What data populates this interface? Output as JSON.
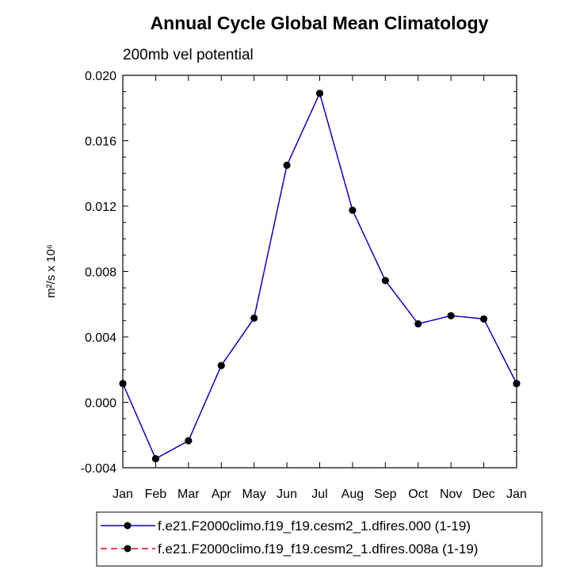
{
  "chart_data": {
    "type": "line",
    "title": "Annual Cycle Global Mean Climatology",
    "subtitle": "200mb vel potential",
    "ylabel": "m²/s x 10⁶",
    "ylim": [
      -0.004,
      0.02
    ],
    "yticks": [
      "0.020",
      "0.016",
      "0.012",
      "0.008",
      "0.004",
      "0.000",
      "-0.004"
    ],
    "categories": [
      "Jan",
      "Feb",
      "Mar",
      "Apr",
      "May",
      "Jun",
      "Jul",
      "Aug",
      "Sep",
      "Oct",
      "Nov",
      "Dec",
      "Jan"
    ],
    "series": [
      {
        "name": "f.e21.F2000climo.f19_f19.cesm2_1.dfires.000 (1-19)",
        "color": "#0000cc",
        "dash": "solid",
        "values": [
          0.00115,
          -0.00345,
          -0.00235,
          0.00225,
          0.00515,
          0.0145,
          0.0189,
          0.01175,
          0.00745,
          0.0048,
          0.0053,
          0.0051,
          0.00115
        ]
      },
      {
        "name": "f.e21.F2000climo.f19_f19.cesm2_1.dfires.008a (1-19)",
        "color": "#ff0000",
        "dash": "dashed",
        "values": [
          0.00115,
          -0.00345,
          -0.00235,
          0.00225,
          0.00515,
          0.0145,
          0.0189,
          0.01175,
          0.00745,
          0.0048,
          0.0053,
          0.0051,
          0.00115
        ]
      }
    ]
  }
}
